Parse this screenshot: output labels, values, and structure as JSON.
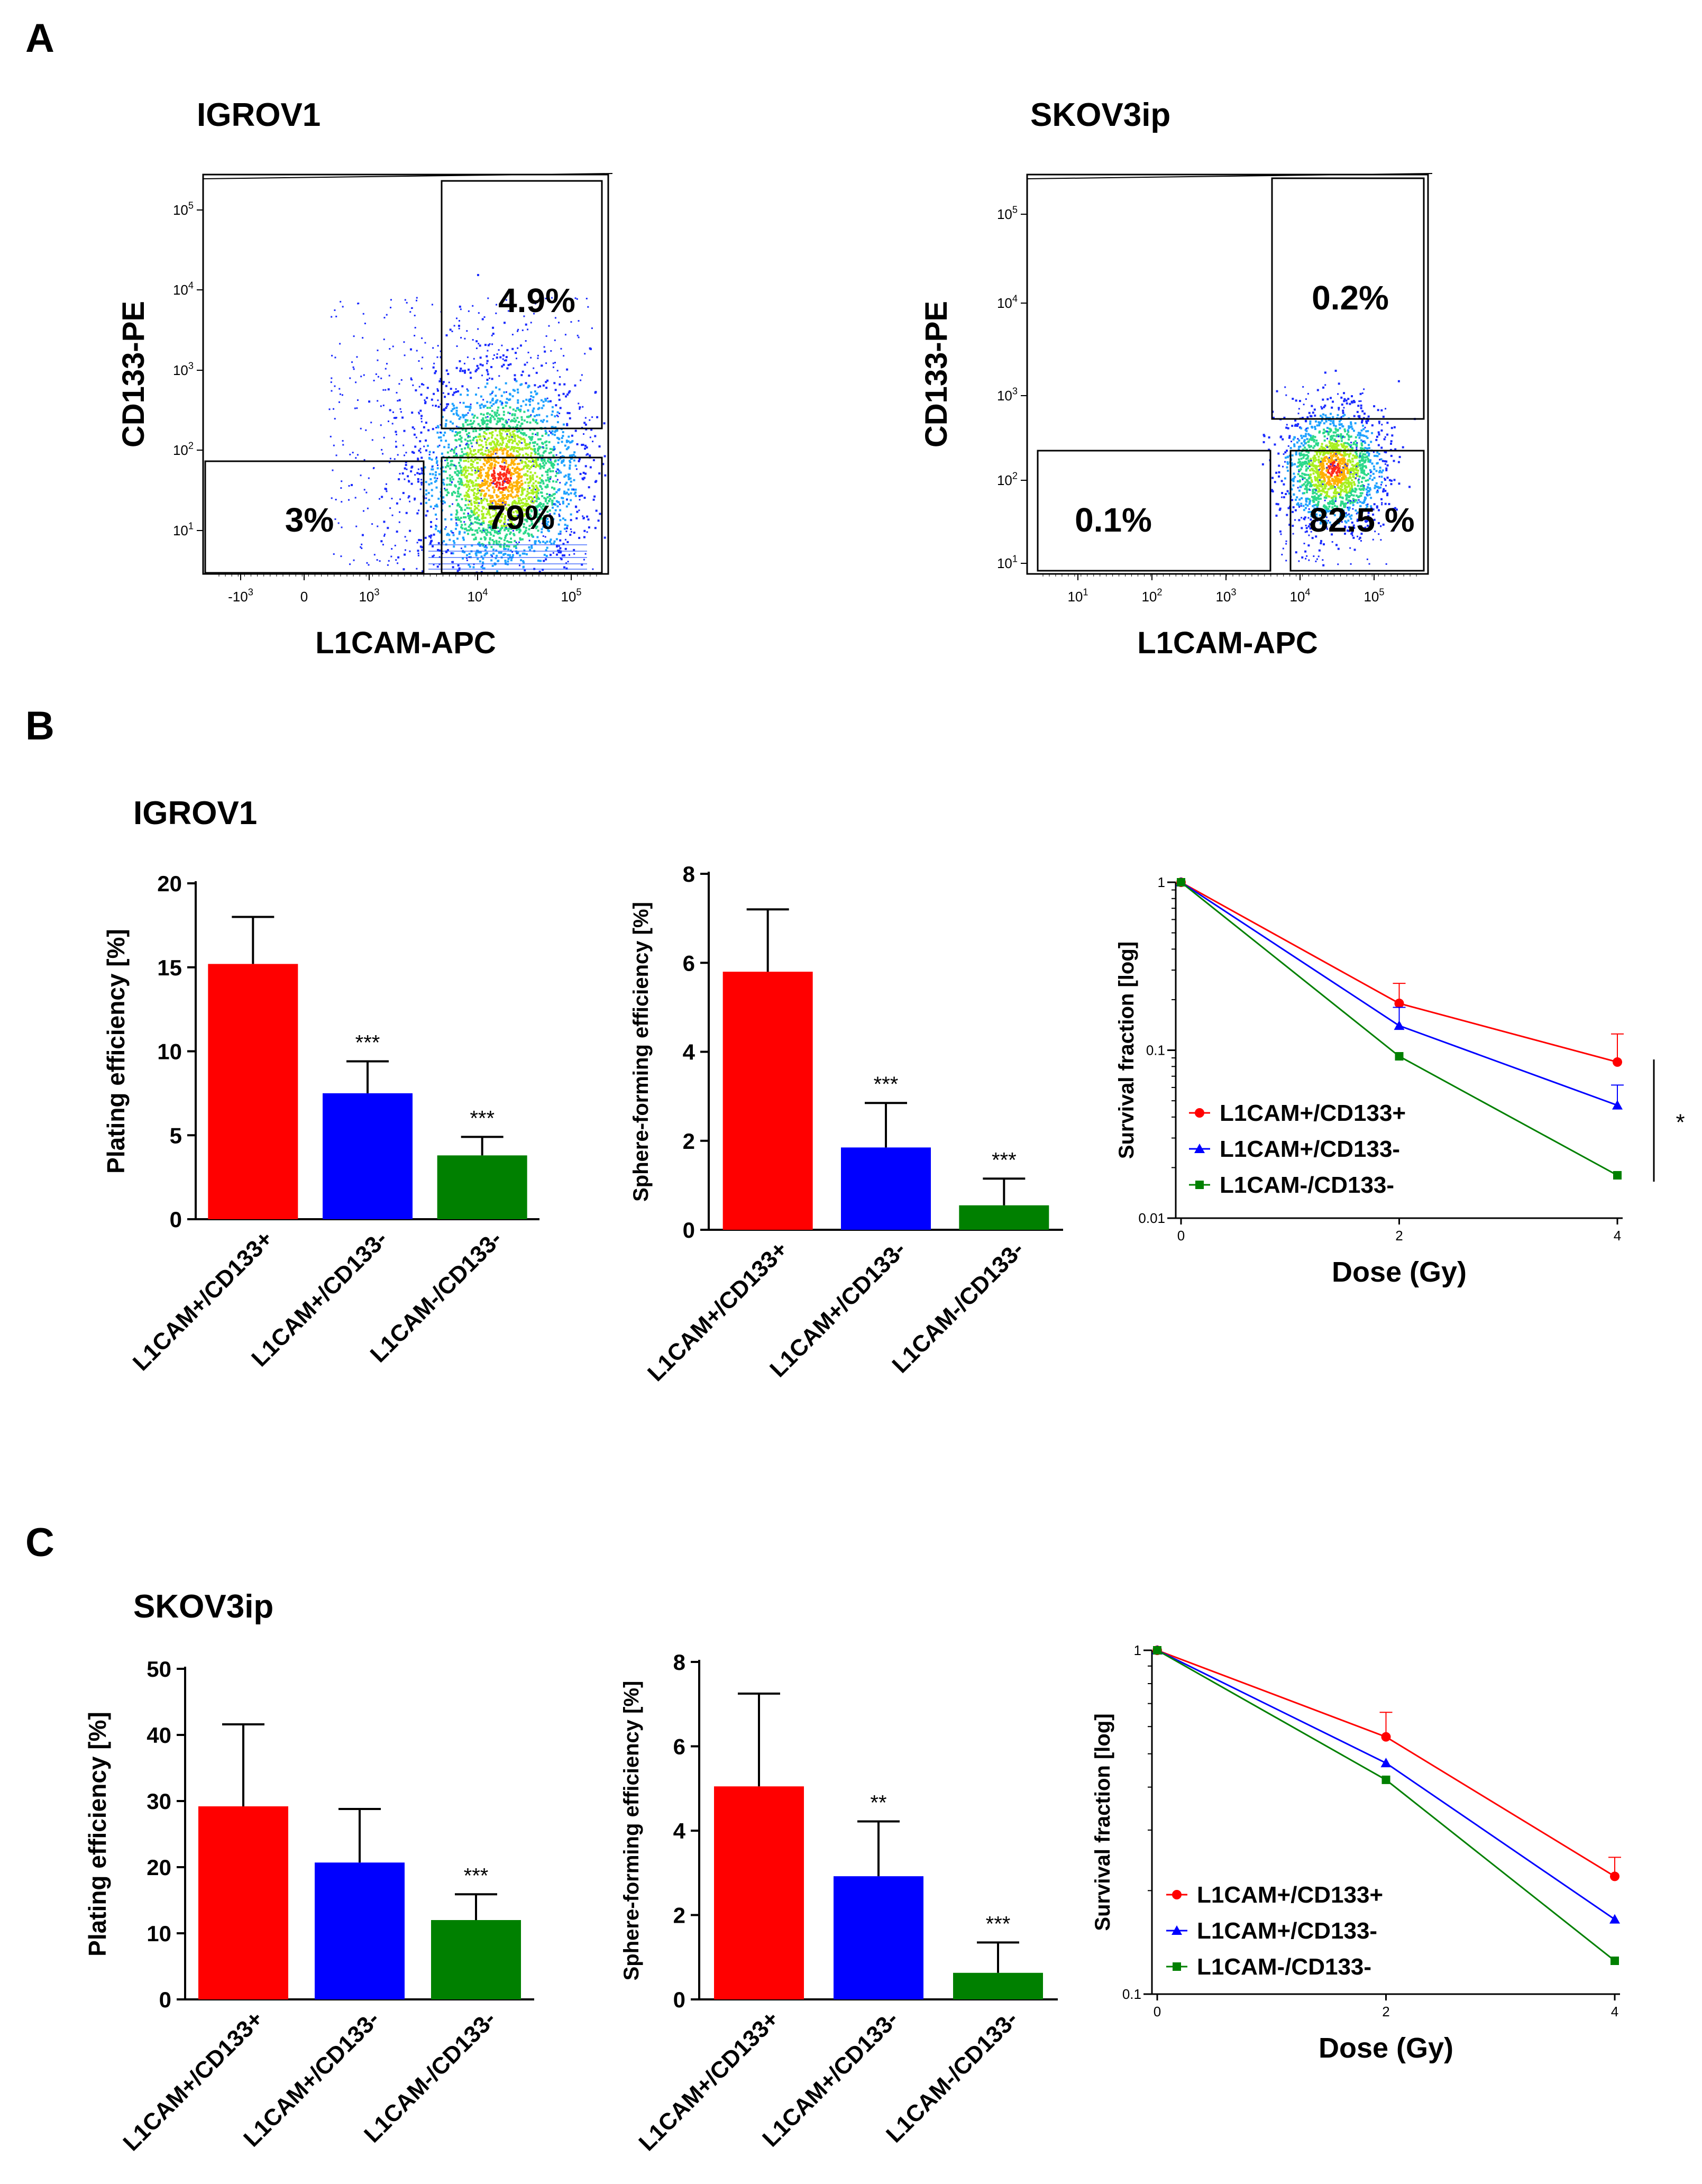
{
  "panels": {
    "A": "A",
    "B": "B",
    "C": "C"
  },
  "chart_data": [
    {
      "id": "A1",
      "type": "scatter",
      "subtype": "flow-cytometry",
      "title": "IGROV1",
      "xlabel": "L1CAM-APC",
      "ylabel": "CD133-PE",
      "x_ticks": [
        {
          "base": "-10",
          "exp": "3",
          "v": -1000
        },
        {
          "base": "0",
          "exp": "",
          "v": 0
        },
        {
          "base": "10",
          "exp": "3",
          "v": 1000
        },
        {
          "base": "10",
          "exp": "4",
          "v": 10000
        },
        {
          "base": "10",
          "exp": "5",
          "v": 100000
        }
      ],
      "y_ticks": [
        {
          "base": "10",
          "exp": "1",
          "v": 10
        },
        {
          "base": "10",
          "exp": "2",
          "v": 100
        },
        {
          "base": "10",
          "exp": "3",
          "v": 1000
        },
        {
          "base": "10",
          "exp": "4",
          "v": 10000
        },
        {
          "base": "10",
          "exp": "5",
          "v": 100000
        }
      ],
      "gates": [
        {
          "name": "L1CAM+/CD133+",
          "label": "4.9%",
          "value": 4.9
        },
        {
          "name": "L1CAM+/CD133-",
          "label": "79%",
          "value": 79
        },
        {
          "name": "L1CAM-/CD133-",
          "label": "3%",
          "value": 3
        }
      ]
    },
    {
      "id": "A2",
      "type": "scatter",
      "subtype": "flow-cytometry",
      "title": "SKOV3ip",
      "xlabel": "L1CAM-APC",
      "ylabel": "CD133-PE",
      "x_ticks": [
        {
          "base": "10",
          "exp": "1",
          "v": 10
        },
        {
          "base": "10",
          "exp": "2",
          "v": 100
        },
        {
          "base": "10",
          "exp": "3",
          "v": 1000
        },
        {
          "base": "10",
          "exp": "4",
          "v": 10000
        },
        {
          "base": "10",
          "exp": "5",
          "v": 100000
        }
      ],
      "y_ticks": [
        {
          "base": "10",
          "exp": "1",
          "v": 10
        },
        {
          "base": "10",
          "exp": "2",
          "v": 100
        },
        {
          "base": "10",
          "exp": "3",
          "v": 1000
        },
        {
          "base": "10",
          "exp": "4",
          "v": 10000
        },
        {
          "base": "10",
          "exp": "5",
          "v": 100000
        }
      ],
      "gates": [
        {
          "name": "L1CAM+/CD133+",
          "label": "0.2%",
          "value": 0.2
        },
        {
          "name": "L1CAM+/CD133-",
          "label": "82.5 %",
          "value": 82.5
        },
        {
          "name": "L1CAM-/CD133-",
          "label": "0.1%",
          "value": 0.1
        }
      ]
    },
    {
      "id": "B1",
      "type": "bar",
      "cell_line": "IGROV1",
      "ylabel": "Plating efficiency [%]",
      "ylim": [
        0,
        20
      ],
      "yticks": [
        0,
        5,
        10,
        15,
        20
      ],
      "categories": [
        "L1CAM+/CD133+",
        "L1CAM+/CD133-",
        "L1CAM-/CD133-"
      ],
      "values": [
        15.2,
        7.5,
        3.8
      ],
      "errors": [
        2.8,
        1.9,
        1.1
      ],
      "significance": [
        "",
        "***",
        "***"
      ],
      "colors": [
        "#ff0000",
        "#0000ff",
        "#008000"
      ]
    },
    {
      "id": "B2",
      "type": "bar",
      "cell_line": "IGROV1",
      "ylabel": "Sphere-forming efficiency [%]",
      "ylim": [
        0,
        8
      ],
      "yticks": [
        0,
        2,
        4,
        6,
        8
      ],
      "categories": [
        "L1CAM+/CD133+",
        "L1CAM+/CD133-",
        "L1CAM-/CD133-"
      ],
      "values": [
        5.8,
        1.85,
        0.55
      ],
      "errors": [
        1.4,
        1.0,
        0.6
      ],
      "significance": [
        "",
        "***",
        "***"
      ],
      "colors": [
        "#ff0000",
        "#0000ff",
        "#008000"
      ]
    },
    {
      "id": "B3",
      "type": "line",
      "scale": "log",
      "xlabel": "Dose (Gy)",
      "ylabel": "Survival fraction [log]",
      "x": [
        0,
        2,
        4
      ],
      "xlim": [
        0,
        4
      ],
      "xticks": [
        "0",
        "2",
        "4"
      ],
      "ylim": [
        0.01,
        1
      ],
      "yticks": [
        {
          "label": "1",
          "v": 1
        },
        {
          "label": "0.1",
          "v": 0.1
        },
        {
          "label": "0.01",
          "v": 0.01
        }
      ],
      "series": [
        {
          "name": "L1CAM+/CD133+",
          "values": [
            1,
            0.19,
            0.085
          ],
          "errors": [
            0,
            0.06,
            0.04
          ],
          "color": "#ff0000",
          "marker": "circle"
        },
        {
          "name": "L1CAM+/CD133-",
          "values": [
            1,
            0.14,
            0.047
          ],
          "errors": [
            0,
            0.04,
            0.015
          ],
          "color": "#0000ff",
          "marker": "triangle"
        },
        {
          "name": "L1CAM-/CD133-",
          "values": [
            1,
            0.092,
            0.018
          ],
          "errors": [
            0,
            0,
            0
          ],
          "color": "#008000",
          "marker": "square"
        }
      ],
      "significance": "*"
    },
    {
      "id": "C1",
      "type": "bar",
      "cell_line": "SKOV3ip",
      "ylabel": "Plating efficiency [%]",
      "ylim": [
        0,
        50
      ],
      "yticks": [
        0,
        10,
        20,
        30,
        40,
        50
      ],
      "categories": [
        "L1CAM+/CD133+",
        "L1CAM+/CD133-",
        "L1CAM-/CD133-"
      ],
      "values": [
        29.2,
        20.7,
        12.0
      ],
      "errors": [
        12.4,
        8.1,
        3.9
      ],
      "significance": [
        "",
        "",
        "***"
      ],
      "colors": [
        "#ff0000",
        "#0000ff",
        "#008000"
      ]
    },
    {
      "id": "C2",
      "type": "bar",
      "cell_line": "SKOV3ip",
      "ylabel": "Sphere-forming efficiency [%]",
      "ylim": [
        0,
        8
      ],
      "yticks": [
        0,
        2,
        4,
        6,
        8
      ],
      "categories": [
        "L1CAM+/CD133+",
        "L1CAM+/CD133-",
        "L1CAM-/CD133-"
      ],
      "values": [
        5.05,
        2.92,
        0.63
      ],
      "errors": [
        2.2,
        1.3,
        0.72
      ],
      "significance": [
        "",
        "**",
        "***"
      ],
      "colors": [
        "#ff0000",
        "#0000ff",
        "#008000"
      ]
    },
    {
      "id": "C3",
      "type": "line",
      "scale": "log",
      "xlabel": "Dose (Gy)",
      "ylabel": "Survival fraction [log]",
      "x": [
        0,
        2,
        4
      ],
      "xlim": [
        0,
        4
      ],
      "xticks": [
        "0",
        "2",
        "4"
      ],
      "ylim": [
        0.1,
        1
      ],
      "yticks": [
        {
          "label": "1",
          "v": 1
        },
        {
          "label": "0.1",
          "v": 0.1
        }
      ],
      "series": [
        {
          "name": "L1CAM+/CD133+",
          "values": [
            1,
            0.56,
            0.22
          ],
          "errors": [
            0,
            0.1,
            0.03
          ],
          "color": "#ff0000",
          "marker": "circle"
        },
        {
          "name": "L1CAM+/CD133-",
          "values": [
            1,
            0.47,
            0.165
          ],
          "errors": [
            0,
            0,
            0
          ],
          "color": "#0000ff",
          "marker": "triangle"
        },
        {
          "name": "L1CAM-/CD133-",
          "values": [
            1,
            0.42,
            0.125
          ],
          "errors": [
            0,
            0,
            0
          ],
          "color": "#008000",
          "marker": "square"
        }
      ],
      "significance": ""
    }
  ]
}
